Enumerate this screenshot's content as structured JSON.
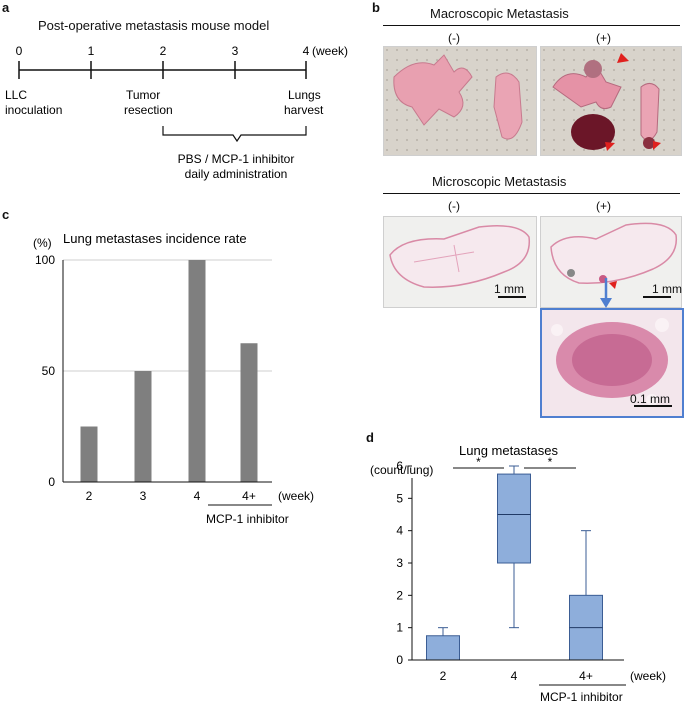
{
  "panel_a": {
    "letter": "a",
    "title": "Post-operative metastasis mouse model",
    "timeline_ticks": [
      "0",
      "1",
      "2",
      "3",
      "4"
    ],
    "unit": "(week)",
    "events": {
      "llc": [
        "LLC",
        "inoculation"
      ],
      "tumor": [
        "Tumor",
        "resection"
      ],
      "lungs": [
        "Lungs",
        "harvest"
      ]
    },
    "treatment": [
      "PBS / MCP-1 inhibitor",
      "daily administration"
    ]
  },
  "panel_b": {
    "letter": "b",
    "macro_title": "Macroscopic Metastasis",
    "micro_title": "Microscopic Metastasis",
    "neg_label": "(-)",
    "pos_label": "(+)",
    "scale_1mm": "1 mm",
    "scale_01mm": "0.1 mm",
    "colors": {
      "lung_tissue": "#e89aac",
      "pad_background": "#d9d4cc",
      "he_stain": "#d77aa0",
      "arrow": "#e0201e",
      "zoom_frame": "#4f7fd0"
    }
  },
  "panel_c": {
    "letter": "c",
    "chart_data": {
      "type": "bar",
      "title": "Lung metastases incidence rate",
      "ylabel": "(%)",
      "xlabel": "(week)",
      "categories": [
        "2",
        "3",
        "4",
        "4+"
      ],
      "values": [
        25,
        50,
        100,
        62.5
      ],
      "ylim": [
        0,
        100
      ],
      "yticks": [
        "0",
        "50",
        "100"
      ],
      "grid": true,
      "bar_color": "#7f7f7f",
      "group_label": "MCP-1 inhibitor"
    }
  },
  "panel_d": {
    "letter": "d",
    "chart_data": {
      "type": "box",
      "title": "Lung metastases",
      "ylabel": "(count/lung)",
      "xlabel": "(week)",
      "categories": [
        "2",
        "4",
        "4+"
      ],
      "boxes": [
        {
          "min": 0,
          "q1": 0,
          "median": 0,
          "q3": 0.75,
          "max": 1
        },
        {
          "min": 1,
          "q1": 3,
          "median": 4.5,
          "q3": 5.75,
          "max": 6
        },
        {
          "min": 0,
          "q1": 0,
          "median": 1,
          "q3": 2,
          "max": 4
        }
      ],
      "ylim": [
        0,
        6
      ],
      "yticks": [
        "0",
        "1",
        "2",
        "3",
        "4",
        "5",
        "6"
      ],
      "significance": [
        {
          "from": 0,
          "to": 1,
          "label": "*"
        },
        {
          "from": 1,
          "to": 2,
          "label": "*"
        }
      ],
      "box_color": "#8eaedb",
      "box_stroke": "#3b5d94",
      "group_label": "MCP-1 inhibitor"
    }
  }
}
